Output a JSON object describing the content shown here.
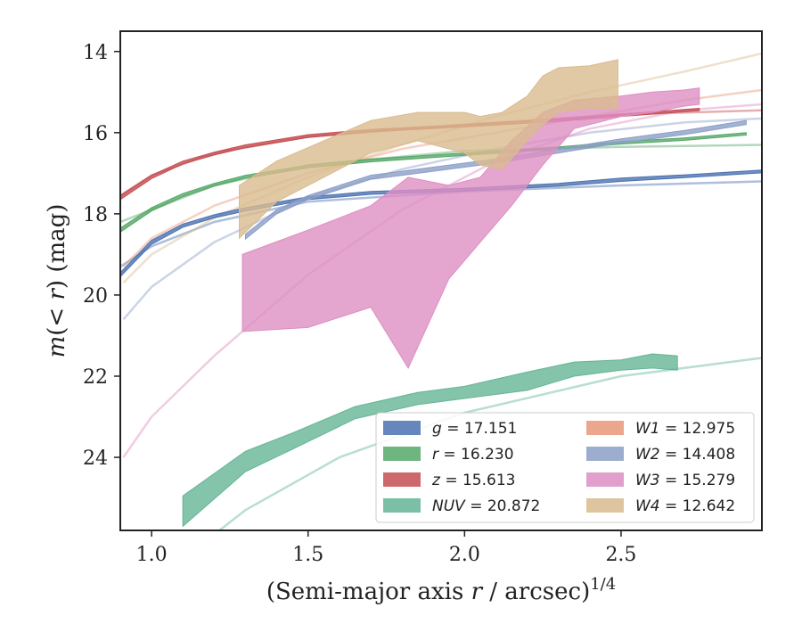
{
  "chart_data": {
    "type": "line",
    "xlabel": "(Semi-major axis r / arcsec)^1/4",
    "ylabel": "m(< r) (mag)",
    "xlim": [
      0.9,
      2.95
    ],
    "ylim": [
      25.8,
      13.5
    ],
    "y_inverted": true,
    "xticks": [
      1.0,
      1.5,
      2.0,
      2.5
    ],
    "xtick_labels": [
      "1.0",
      "1.5",
      "2.0",
      "2.5"
    ],
    "yticks": [
      14,
      16,
      18,
      20,
      22,
      24
    ],
    "ytick_labels": [
      "14",
      "16",
      "18",
      "20",
      "22",
      "24"
    ],
    "grid": false,
    "legend_position": "lower-right",
    "series": [
      {
        "name": "g = 17.151",
        "italic": "g",
        "rest": " = 17.151",
        "color": "#4c72b0",
        "band": [
          [
            0.9,
            19.45,
            19.55
          ],
          [
            1.0,
            18.65,
            18.75
          ],
          [
            1.1,
            18.25,
            18.33
          ],
          [
            1.2,
            18.02,
            18.1
          ],
          [
            1.3,
            17.85,
            17.93
          ],
          [
            1.5,
            17.58,
            17.65
          ],
          [
            1.7,
            17.45,
            17.52
          ],
          [
            2.0,
            17.37,
            17.44
          ],
          [
            2.3,
            17.25,
            17.32
          ],
          [
            2.5,
            17.12,
            17.2
          ],
          [
            2.7,
            17.04,
            17.11
          ],
          [
            2.95,
            16.92,
            16.99
          ]
        ],
        "fit": [
          [
            0.9,
            19.3
          ],
          [
            1.0,
            18.8
          ],
          [
            1.2,
            18.2
          ],
          [
            1.5,
            17.7
          ],
          [
            2.0,
            17.45
          ],
          [
            2.5,
            17.3
          ],
          [
            2.95,
            17.2
          ]
        ]
      },
      {
        "name": "r = 16.230",
        "italic": "r",
        "rest": " = 16.230",
        "color": "#55a868",
        "band": [
          [
            0.9,
            18.35,
            18.45
          ],
          [
            1.0,
            17.85,
            17.93
          ],
          [
            1.1,
            17.5,
            17.58
          ],
          [
            1.2,
            17.25,
            17.32
          ],
          [
            1.3,
            17.05,
            17.12
          ],
          [
            1.5,
            16.8,
            16.87
          ],
          [
            1.7,
            16.65,
            16.72
          ],
          [
            2.0,
            16.5,
            16.56
          ],
          [
            2.3,
            16.35,
            16.41
          ],
          [
            2.5,
            16.22,
            16.28
          ],
          [
            2.7,
            16.13,
            16.19
          ],
          [
            2.9,
            16.0,
            16.06
          ]
        ],
        "fit": [
          [
            0.9,
            18.2
          ],
          [
            1.0,
            17.9
          ],
          [
            1.2,
            17.3
          ],
          [
            1.5,
            16.8
          ],
          [
            2.0,
            16.45
          ],
          [
            2.5,
            16.35
          ],
          [
            2.95,
            16.3
          ]
        ]
      },
      {
        "name": "z = 15.613",
        "italic": "z",
        "rest": " = 15.613",
        "color": "#c44e52",
        "band": [
          [
            0.9,
            17.55,
            17.65
          ],
          [
            1.0,
            17.05,
            17.13
          ],
          [
            1.1,
            16.7,
            16.77
          ],
          [
            1.2,
            16.48,
            16.55
          ],
          [
            1.3,
            16.3,
            16.37
          ],
          [
            1.5,
            16.05,
            16.12
          ],
          [
            1.7,
            15.92,
            15.98
          ],
          [
            2.0,
            15.8,
            15.86
          ],
          [
            2.3,
            15.66,
            15.72
          ],
          [
            2.5,
            15.54,
            15.6
          ],
          [
            2.75,
            15.4,
            15.46
          ]
        ],
        "fit": [
          [
            0.9,
            17.55
          ],
          [
            1.0,
            17.05
          ],
          [
            1.2,
            16.5
          ],
          [
            1.5,
            16.1
          ],
          [
            2.0,
            15.8
          ],
          [
            2.5,
            15.55
          ],
          [
            2.95,
            15.45
          ]
        ]
      },
      {
        "name": "NUV = 20.872",
        "italic": "NUV",
        "rest": " = 20.872",
        "color": "#64b596",
        "band": [
          [
            1.1,
            24.95,
            25.7
          ],
          [
            1.3,
            23.85,
            24.35
          ],
          [
            1.45,
            23.4,
            23.8
          ],
          [
            1.65,
            22.75,
            23.05
          ],
          [
            1.85,
            22.4,
            22.7
          ],
          [
            2.0,
            22.25,
            22.55
          ],
          [
            2.2,
            21.9,
            22.35
          ],
          [
            2.35,
            21.65,
            22.0
          ],
          [
            2.5,
            21.6,
            21.85
          ],
          [
            2.6,
            21.45,
            21.8
          ],
          [
            2.68,
            21.5,
            21.85
          ]
        ],
        "fit": [
          [
            1.1,
            26.5
          ],
          [
            1.3,
            25.3
          ],
          [
            1.6,
            24.0
          ],
          [
            2.0,
            22.9
          ],
          [
            2.5,
            22.0
          ],
          [
            2.95,
            21.55
          ]
        ]
      },
      {
        "name": "W1 = 12.975",
        "italic": "W1",
        "rest": " = 12.975",
        "color": "#e8967a",
        "band": [],
        "fit": [
          [
            0.91,
            19.3
          ],
          [
            1.0,
            18.6
          ],
          [
            1.2,
            17.8
          ],
          [
            1.5,
            17.0
          ],
          [
            1.8,
            16.4
          ],
          [
            2.1,
            16.0
          ],
          [
            2.4,
            15.6
          ],
          [
            2.7,
            15.2
          ],
          [
            2.95,
            14.95
          ]
        ]
      },
      {
        "name": "W2 = 14.408",
        "italic": "W2",
        "rest": " = 14.408",
        "color": "#8c9fc7",
        "band": [
          [
            1.3,
            18.5,
            18.62
          ],
          [
            1.4,
            17.9,
            18.0
          ],
          [
            1.5,
            17.55,
            17.65
          ],
          [
            1.7,
            17.05,
            17.15
          ],
          [
            1.9,
            16.85,
            16.95
          ],
          [
            2.1,
            16.65,
            16.75
          ],
          [
            2.3,
            16.4,
            16.5
          ],
          [
            2.5,
            16.15,
            16.25
          ],
          [
            2.7,
            15.95,
            16.05
          ],
          [
            2.9,
            15.7,
            15.8
          ]
        ],
        "fit": [
          [
            0.91,
            20.6
          ],
          [
            1.0,
            19.8
          ],
          [
            1.2,
            18.7
          ],
          [
            1.5,
            17.6
          ],
          [
            1.8,
            16.9
          ],
          [
            2.1,
            16.4
          ],
          [
            2.4,
            16.0
          ],
          [
            2.7,
            15.75
          ],
          [
            2.95,
            15.65
          ]
        ]
      },
      {
        "name": "W3 = 15.279",
        "italic": "W3",
        "rest": " = 15.279",
        "color": "#dd8ec3",
        "band": [
          [
            1.29,
            19.0,
            20.9
          ],
          [
            1.5,
            18.4,
            20.8
          ],
          [
            1.7,
            17.8,
            20.3
          ],
          [
            1.82,
            17.1,
            21.8
          ],
          [
            1.95,
            17.3,
            19.6
          ],
          [
            2.05,
            17.1,
            18.7
          ],
          [
            2.15,
            16.2,
            17.8
          ],
          [
            2.25,
            15.5,
            16.8
          ],
          [
            2.35,
            15.2,
            15.9
          ],
          [
            2.5,
            15.1,
            15.6
          ],
          [
            2.6,
            15.0,
            15.5
          ],
          [
            2.7,
            14.95,
            15.35
          ],
          [
            2.75,
            14.9,
            15.3
          ]
        ],
        "fit": [
          [
            0.91,
            24.0
          ],
          [
            1.0,
            23.0
          ],
          [
            1.2,
            21.5
          ],
          [
            1.5,
            19.5
          ],
          [
            1.8,
            17.9
          ],
          [
            2.1,
            16.7
          ],
          [
            2.4,
            15.9
          ],
          [
            2.7,
            15.45
          ],
          [
            2.95,
            15.3
          ]
        ]
      },
      {
        "name": "W4 = 12.642",
        "italic": "W4",
        "rest": " = 12.642",
        "color": "#d9bb8e",
        "band": [
          [
            1.28,
            17.3,
            18.6
          ],
          [
            1.4,
            16.7,
            17.7
          ],
          [
            1.55,
            16.2,
            17.1
          ],
          [
            1.7,
            15.7,
            16.5
          ],
          [
            1.85,
            15.5,
            16.2
          ],
          [
            2.0,
            15.5,
            16.5
          ],
          [
            2.05,
            15.6,
            16.8
          ],
          [
            2.12,
            15.5,
            16.9
          ],
          [
            2.2,
            15.1,
            16.2
          ],
          [
            2.25,
            14.6,
            15.8
          ],
          [
            2.3,
            14.4,
            15.5
          ],
          [
            2.4,
            14.35,
            15.4
          ],
          [
            2.49,
            14.2,
            15.4
          ]
        ],
        "fit": [
          [
            0.91,
            19.7
          ],
          [
            1.0,
            19.0
          ],
          [
            1.2,
            18.1
          ],
          [
            1.5,
            17.1
          ],
          [
            1.8,
            16.3
          ],
          [
            2.1,
            15.6
          ],
          [
            2.4,
            15.0
          ],
          [
            2.7,
            14.5
          ],
          [
            2.95,
            14.05
          ]
        ]
      }
    ]
  }
}
